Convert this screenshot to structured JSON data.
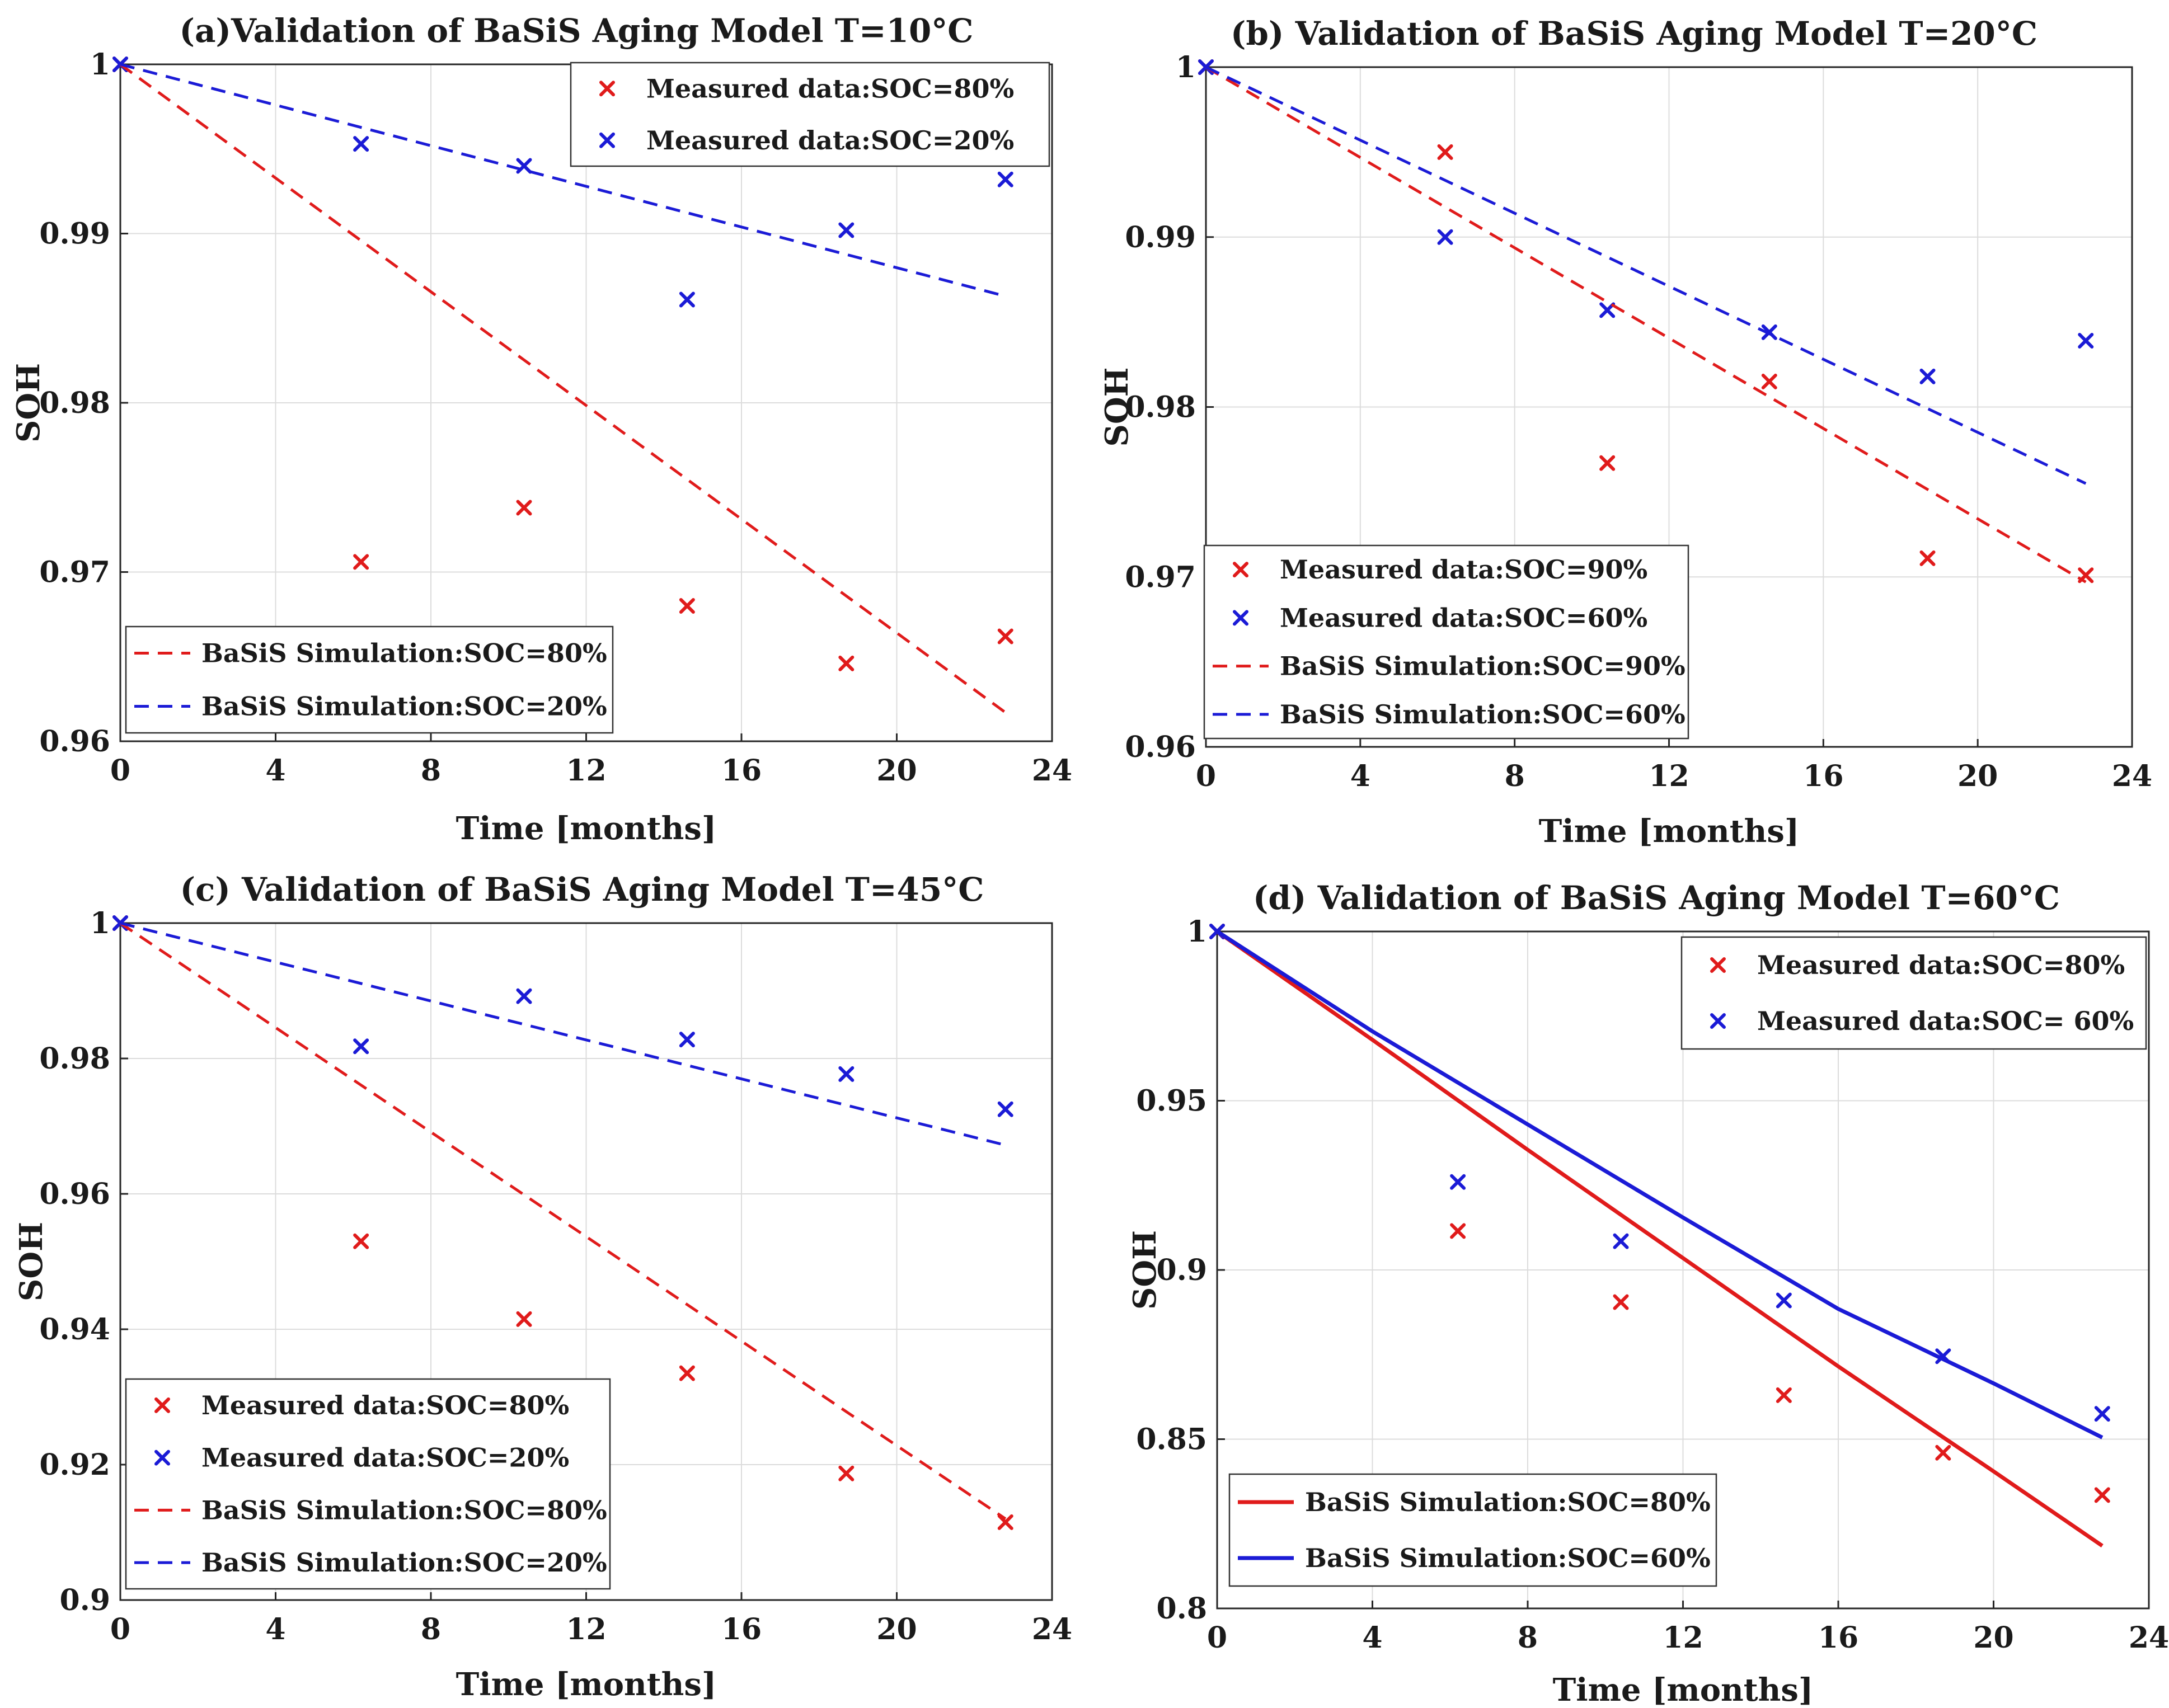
{
  "chart_data": [
    {
      "id": "a",
      "type": "line",
      "title": "(a)Validation of BaSiS Aging Model T=10°C",
      "xlabel": "Time [months]",
      "ylabel": "SOH",
      "xlim": [
        0,
        24
      ],
      "ylim": [
        0.96,
        1.0
      ],
      "xticks": [
        "0",
        "4",
        "8",
        "12",
        "16",
        "20",
        "24"
      ],
      "yticks": [
        {
          "value": 0.96,
          "label": "0.96"
        },
        {
          "value": 0.97,
          "label": "0.97"
        },
        {
          "value": 0.98,
          "label": "0.98"
        },
        {
          "value": 0.99,
          "label": "0.99"
        },
        {
          "value": 1.0,
          "label": "1"
        }
      ],
      "grid": true,
      "series": [
        {
          "name": "Measured data:SOC=80%",
          "kind": "scatter",
          "color": "#e01b1b",
          "legend": 0,
          "points": [
            [
              0,
              1.0
            ],
            [
              6.2,
              0.9706
            ],
            [
              10.4,
              0.9738
            ],
            [
              14.6,
              0.968
            ],
            [
              18.7,
              0.9646
            ],
            [
              22.8,
              0.9662
            ]
          ]
        },
        {
          "name": "Measured data:SOC=20%",
          "kind": "scatter",
          "color": "#1b1bd6",
          "legend": 0,
          "points": [
            [
              0,
              1.0
            ],
            [
              6.2,
              0.9953
            ],
            [
              10.4,
              0.994
            ],
            [
              14.6,
              0.9861
            ],
            [
              18.7,
              0.9902
            ],
            [
              22.8,
              0.9932
            ]
          ]
        },
        {
          "name": "BaSiS Simulation:SOC=80%",
          "kind": "line",
          "dash": true,
          "color": "#e01b1b",
          "legend": 1,
          "points": [
            [
              0,
              1.0
            ],
            [
              22.8,
              0.9617
            ]
          ]
        },
        {
          "name": "BaSiS Simulation:SOC=20%",
          "kind": "line",
          "dash": true,
          "color": "#1b1bd6",
          "legend": 1,
          "points": [
            [
              0,
              1.0
            ],
            [
              22.8,
              0.9863
            ]
          ]
        }
      ],
      "legends": [
        {
          "placement": "top-right"
        },
        {
          "placement": "bottom-left"
        }
      ]
    },
    {
      "id": "b",
      "type": "line",
      "title": "(b) Validation of BaSiS Aging Model T=20°C",
      "xlabel": "Time [months]",
      "ylabel": "SOH",
      "xlim": [
        0,
        24
      ],
      "ylim": [
        0.96,
        1.0
      ],
      "xticks": [
        "0",
        "4",
        "8",
        "12",
        "16",
        "20",
        "24"
      ],
      "yticks": [
        {
          "value": 0.96,
          "label": "0.96"
        },
        {
          "value": 0.97,
          "label": "0.97"
        },
        {
          "value": 0.98,
          "label": "0.98"
        },
        {
          "value": 0.99,
          "label": "0.99"
        },
        {
          "value": 1.0,
          "label": "1"
        }
      ],
      "grid": true,
      "series": [
        {
          "name": "Measured data:SOC=90%",
          "kind": "scatter",
          "color": "#e01b1b",
          "legend": 0,
          "points": [
            [
              0,
              1.0
            ],
            [
              6.2,
              0.995
            ],
            [
              10.4,
              0.9767
            ],
            [
              14.6,
              0.9815
            ],
            [
              18.7,
              0.9711
            ],
            [
              22.8,
              0.9701
            ]
          ]
        },
        {
          "name": "Measured data:SOC=60%",
          "kind": "scatter",
          "color": "#1b1bd6",
          "legend": 0,
          "points": [
            [
              0,
              1.0
            ],
            [
              6.2,
              0.99
            ],
            [
              10.4,
              0.9857
            ],
            [
              14.6,
              0.9844
            ],
            [
              18.7,
              0.9818
            ],
            [
              22.8,
              0.9839
            ]
          ]
        },
        {
          "name": "BaSiS Simulation:SOC=90%",
          "kind": "line",
          "dash": true,
          "color": "#e01b1b",
          "legend": 0,
          "points": [
            [
              0,
              1.0
            ],
            [
              22.8,
              0.9697
            ]
          ]
        },
        {
          "name": "BaSiS Simulation:SOC=60%",
          "kind": "line",
          "dash": true,
          "color": "#1b1bd6",
          "legend": 0,
          "points": [
            [
              0,
              1.0
            ],
            [
              22.8,
              0.9755
            ]
          ]
        }
      ],
      "legends": [
        {
          "placement": "bottom-left"
        }
      ]
    },
    {
      "id": "c",
      "type": "line",
      "title": "(c) Validation of BaSiS Aging Model T=45°C",
      "xlabel": "Time [months]",
      "ylabel": "SOH",
      "xlim": [
        0,
        24
      ],
      "ylim": [
        0.9,
        1.0
      ],
      "xticks": [
        "0",
        "4",
        "8",
        "12",
        "16",
        "20",
        "24"
      ],
      "yticks": [
        {
          "value": 0.9,
          "label": "0.9"
        },
        {
          "value": 0.92,
          "label": "0.92"
        },
        {
          "value": 0.94,
          "label": "0.94"
        },
        {
          "value": 0.96,
          "label": "0.96"
        },
        {
          "value": 0.98,
          "label": "0.98"
        },
        {
          "value": 1.0,
          "label": "1"
        }
      ],
      "grid": true,
      "series": [
        {
          "name": "Measured data:SOC=80%",
          "kind": "scatter",
          "color": "#e01b1b",
          "legend": 0,
          "points": [
            [
              0,
              1.0
            ],
            [
              6.2,
              0.953
            ],
            [
              10.4,
              0.9415
            ],
            [
              14.6,
              0.9335
            ],
            [
              18.7,
              0.9187
            ],
            [
              22.8,
              0.9115
            ]
          ]
        },
        {
          "name": "Measured data:SOC=20%",
          "kind": "scatter",
          "color": "#1b1bd6",
          "legend": 0,
          "points": [
            [
              0,
              1.0
            ],
            [
              6.2,
              0.9818
            ],
            [
              10.4,
              0.9892
            ],
            [
              14.6,
              0.9828
            ],
            [
              18.7,
              0.9777
            ],
            [
              22.8,
              0.9725
            ]
          ]
        },
        {
          "name": "BaSiS Simulation:SOC=80%",
          "kind": "line",
          "dash": true,
          "color": "#e01b1b",
          "legend": 0,
          "points": [
            [
              0,
              1.0
            ],
            [
              22.8,
              0.912
            ]
          ]
        },
        {
          "name": "BaSiS Simulation:SOC=20%",
          "kind": "line",
          "dash": true,
          "color": "#1b1bd6",
          "legend": 0,
          "points": [
            [
              0,
              1.0
            ],
            [
              22.8,
              0.9672
            ]
          ]
        }
      ],
      "legends": [
        {
          "placement": "bottom-left"
        }
      ]
    },
    {
      "id": "d",
      "type": "line",
      "title": "(d) Validation of BaSiS Aging Model T=60°C",
      "xlabel": "Time [months]",
      "ylabel": "SOH",
      "xlim": [
        0,
        24
      ],
      "ylim": [
        0.8,
        1.0
      ],
      "xticks": [
        "0",
        "4",
        "8",
        "12",
        "16",
        "20",
        "24"
      ],
      "yticks": [
        {
          "value": 0.8,
          "label": "0.8"
        },
        {
          "value": 0.85,
          "label": "0.85"
        },
        {
          "value": 0.9,
          "label": "0.9"
        },
        {
          "value": 0.95,
          "label": "0.95"
        },
        {
          "value": 1.0,
          "label": "1"
        }
      ],
      "grid": true,
      "series": [
        {
          "name": "Measured data:SOC=80%",
          "kind": "scatter",
          "color": "#e01b1b",
          "legend": 0,
          "points": [
            [
              0,
              1.0
            ],
            [
              6.2,
              0.9115
            ],
            [
              10.4,
              0.8905
            ],
            [
              14.6,
              0.863
            ],
            [
              18.7,
              0.846
            ],
            [
              22.8,
              0.8335
            ]
          ]
        },
        {
          "name": "Measured data:SOC= 60%",
          "kind": "scatter",
          "color": "#1b1bd6",
          "legend": 0,
          "points": [
            [
              0,
              1.0
            ],
            [
              6.2,
              0.926
            ],
            [
              10.4,
              0.9085
            ],
            [
              14.6,
              0.891
            ],
            [
              18.7,
              0.8745
            ],
            [
              22.8,
              0.8575
            ]
          ]
        },
        {
          "name": "BaSiS Simulation:SOC=80%",
          "kind": "line",
          "dash": false,
          "color": "#e01b1b",
          "legend": 1,
          "points": [
            [
              0,
              1.0
            ],
            [
              4,
              0.968
            ],
            [
              8,
              0.9355
            ],
            [
              12,
              0.9035
            ],
            [
              16,
              0.8715
            ],
            [
              20,
              0.8405
            ],
            [
              22.8,
              0.8185
            ]
          ]
        },
        {
          "name": "BaSiS Simulation:SOC=60%",
          "kind": "line",
          "dash": false,
          "color": "#1b1bd6",
          "legend": 1,
          "points": [
            [
              0,
              1.0
            ],
            [
              4,
              0.9705
            ],
            [
              8,
              0.943
            ],
            [
              12,
              0.9155
            ],
            [
              16,
              0.8885
            ],
            [
              20,
              0.8665
            ],
            [
              22.8,
              0.8505
            ]
          ]
        }
      ],
      "legends": [
        {
          "placement": "top-right"
        },
        {
          "placement": "bottom-left"
        }
      ]
    }
  ]
}
